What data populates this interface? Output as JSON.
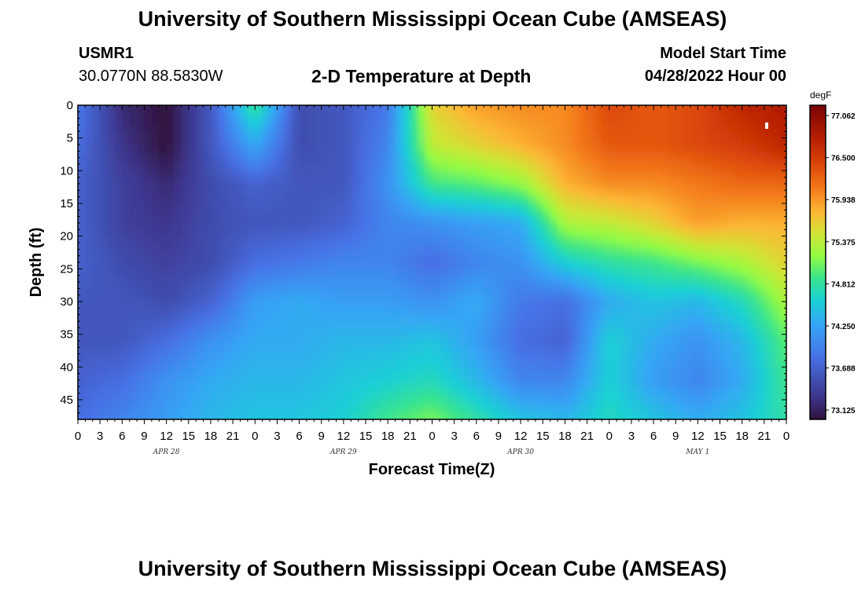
{
  "page": {
    "title": "University of Southern Mississippi Ocean Cube (AMSEAS)",
    "title_repeat": "University of Southern Mississippi Ocean Cube (AMSEAS)",
    "station": "USMR1",
    "coordinates": "30.0770N  88.5830W",
    "subtitle": "2-D Temperature at Depth",
    "model_start_label": "Model Start Time",
    "model_start_value": "04/28/2022 Hour 00"
  },
  "chart_data": {
    "type": "heatmap",
    "title": "2-D Temperature at Depth",
    "xlabel": "Forecast Time(Z)",
    "ylabel": "Depth (ft)",
    "x_range_hours": [
      0,
      96
    ],
    "x_tick_labels": [
      "0",
      "3",
      "6",
      "9",
      "12",
      "15",
      "18",
      "21",
      "0",
      "3",
      "6",
      "9",
      "12",
      "15",
      "18",
      "21",
      "0",
      "3",
      "6",
      "9",
      "12",
      "15",
      "18",
      "21",
      "0",
      "3",
      "6",
      "9",
      "12",
      "15",
      "18",
      "21",
      "0"
    ],
    "date_labels": [
      {
        "label": "APR 28",
        "hour": 12
      },
      {
        "label": "APR 29",
        "hour": 36
      },
      {
        "label": "APR 30",
        "hour": 60
      },
      {
        "label": "MAY 1",
        "hour": 84
      }
    ],
    "y_range": [
      0,
      48
    ],
    "y_inverted": true,
    "y_ticks": [
      0,
      5,
      10,
      15,
      20,
      25,
      30,
      35,
      40,
      45
    ],
    "colorbar": {
      "unit": "degF",
      "range": [
        73.0,
        77.2
      ],
      "tick_labels": [
        "77.062",
        "76.500",
        "75.938",
        "75.375",
        "74.812",
        "74.250",
        "73.688",
        "73.125"
      ],
      "tick_values": [
        77.062,
        76.5,
        75.938,
        75.375,
        74.812,
        74.25,
        73.688,
        73.125
      ]
    },
    "grid_hours": [
      0,
      6,
      12,
      18,
      24,
      30,
      36,
      42,
      48,
      54,
      60,
      66,
      72,
      78,
      84,
      90,
      96
    ],
    "grid_depths": [
      0,
      6,
      12,
      18,
      24,
      30,
      36,
      42,
      48
    ],
    "values": [
      [
        73.9,
        73.2,
        73.0,
        73.6,
        74.9,
        73.5,
        73.6,
        73.9,
        75.6,
        75.9,
        76.0,
        76.0,
        76.4,
        76.3,
        76.4,
        76.7,
        76.8
      ],
      [
        73.8,
        73.3,
        73.0,
        73.6,
        74.3,
        73.5,
        73.6,
        74.0,
        75.4,
        75.6,
        75.8,
        76.0,
        76.3,
        76.3,
        76.4,
        76.5,
        76.7
      ],
      [
        73.7,
        73.4,
        73.2,
        73.5,
        73.7,
        73.6,
        73.6,
        74.1,
        74.9,
        75.0,
        75.2,
        75.8,
        76.0,
        76.0,
        76.1,
        76.2,
        76.2
      ],
      [
        73.7,
        73.4,
        73.3,
        73.5,
        73.6,
        73.6,
        73.7,
        74.0,
        74.1,
        74.2,
        74.3,
        75.3,
        75.4,
        75.6,
        75.9,
        75.8,
        75.8
      ],
      [
        73.7,
        73.5,
        73.4,
        73.5,
        73.8,
        73.9,
        74.0,
        74.0,
        73.8,
        74.0,
        74.1,
        74.6,
        74.8,
        74.9,
        75.1,
        75.3,
        75.6
      ],
      [
        73.6,
        73.6,
        73.5,
        73.7,
        74.2,
        74.3,
        74.2,
        74.2,
        74.1,
        74.3,
        73.9,
        73.8,
        74.3,
        74.5,
        74.4,
        74.7,
        75.3
      ],
      [
        73.6,
        73.6,
        73.8,
        74.1,
        74.3,
        74.3,
        74.4,
        74.4,
        74.5,
        74.2,
        73.8,
        73.7,
        74.6,
        74.3,
        74.1,
        74.4,
        75.0
      ],
      [
        73.7,
        73.8,
        74.1,
        74.3,
        74.4,
        74.4,
        74.5,
        74.6,
        74.7,
        74.4,
        74.0,
        74.0,
        74.6,
        74.2,
        74.0,
        74.3,
        74.9
      ],
      [
        73.8,
        74.0,
        74.2,
        74.4,
        74.5,
        74.5,
        74.6,
        74.9,
        75.1,
        74.8,
        74.5,
        74.4,
        74.7,
        74.5,
        74.3,
        74.5,
        74.8
      ]
    ]
  }
}
